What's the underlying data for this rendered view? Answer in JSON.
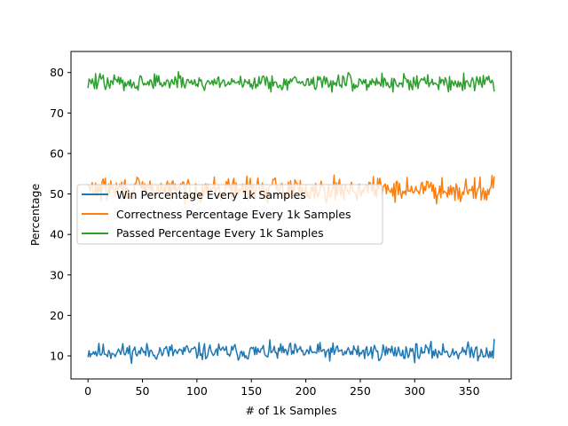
{
  "chart_data": {
    "type": "line",
    "title": "",
    "xlabel": "# of 1k Samples",
    "ylabel": "Percentage",
    "xlim": [
      -15.6,
      388.6
    ],
    "ylim": [
      4.3,
      85.2
    ],
    "x_ticks": [
      0,
      50,
      100,
      150,
      200,
      250,
      300,
      350
    ],
    "y_ticks": [
      10,
      20,
      30,
      40,
      50,
      60,
      70,
      80
    ],
    "x_tick_labels": [
      "0",
      "50",
      "100",
      "150",
      "200",
      "250",
      "300",
      "350"
    ],
    "y_tick_labels": [
      "10",
      "20",
      "30",
      "40",
      "50",
      "60",
      "70",
      "80"
    ],
    "grid": false,
    "legend_position": "center-left",
    "x_range": [
      0,
      373
    ],
    "series": [
      {
        "name": "Win Percentage Every 1k Samples",
        "color": "#1f77b4",
        "mean": 11.0,
        "amplitude": 1.6,
        "end_value": 14.2,
        "min_value": 8.0
      },
      {
        "name": "Correctness Percentage Every 1k Samples",
        "color": "#ff7f0e",
        "mean": 51.2,
        "amplitude": 2.2,
        "end_value": 54.3,
        "max_value": 56.2,
        "min_value": 45.5
      },
      {
        "name": "Passed Percentage Every 1k Samples",
        "color": "#2ca02c",
        "mean": 77.6,
        "amplitude": 1.6,
        "end_value": 75.3,
        "max_value": 81.6,
        "min_value": 73.0
      }
    ]
  }
}
